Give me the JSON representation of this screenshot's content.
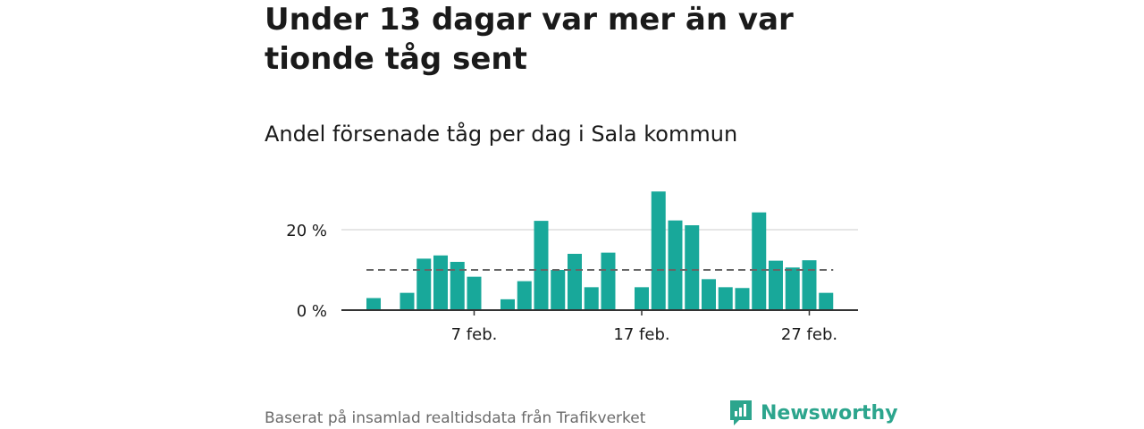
{
  "title": "Under 13 dagar var mer än var tionde tåg sent",
  "subtitle": "Andel försenade tåg per dag i Sala kommun",
  "footer": "Baserat på insamlad realtidsdata från Trafikverket",
  "brand": "Newsworthy",
  "colors": {
    "bar": "#18a89a",
    "reference": "#666666",
    "grid": "#dddddd",
    "brand": "#2ca58d"
  },
  "chart_data": {
    "type": "bar",
    "x": [
      1,
      2,
      3,
      4,
      5,
      6,
      7,
      8,
      9,
      10,
      11,
      12,
      13,
      14,
      15,
      16,
      17,
      18,
      19,
      20,
      21,
      22,
      23,
      24,
      25,
      26,
      27,
      28
    ],
    "values": [
      3,
      0,
      4.3,
      12.8,
      13.6,
      12,
      8.3,
      0,
      2.7,
      7.2,
      22.2,
      10,
      14,
      5.7,
      14.3,
      0,
      5.7,
      29.5,
      22.3,
      21.1,
      7.7,
      5.7,
      5.5,
      24.3,
      12.3,
      10.6,
      12.4,
      4.3
    ],
    "reference_line": 10,
    "ylim": [
      0,
      30
    ],
    "y_ticks": [
      0,
      20
    ],
    "y_tick_labels": [
      "0 %",
      "20 %"
    ],
    "x_ticks": [
      7,
      17,
      27
    ],
    "x_tick_labels": [
      "7 feb.",
      "17 feb.",
      "27 feb."
    ],
    "grid": true
  }
}
